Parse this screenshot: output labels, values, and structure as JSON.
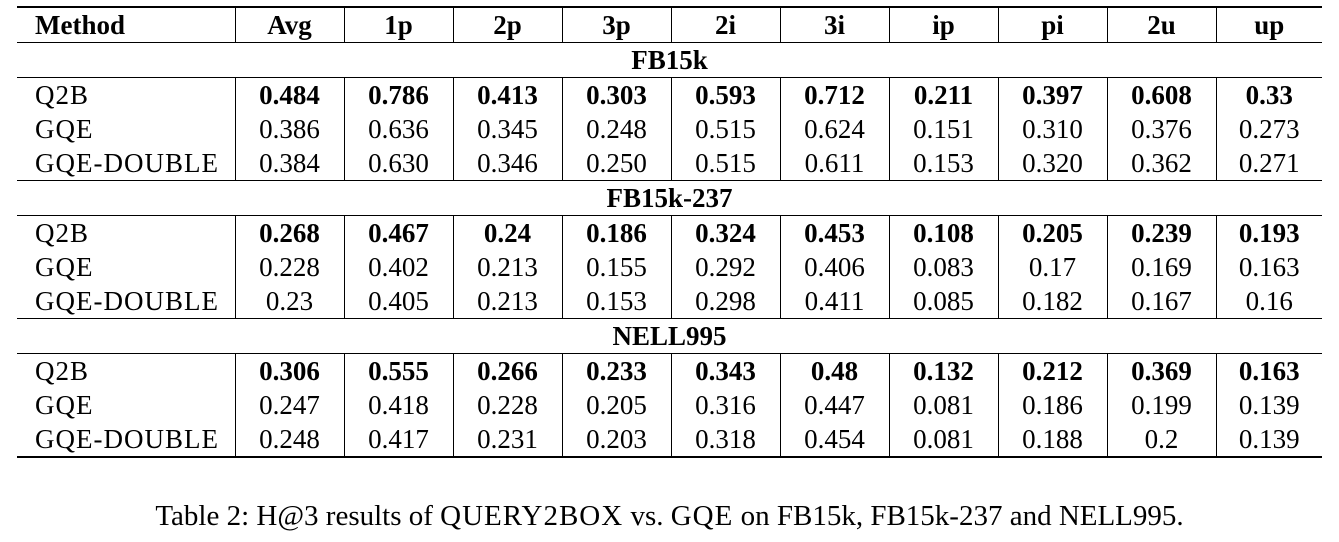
{
  "table": {
    "columns": [
      "Method",
      "Avg",
      "1p",
      "2p",
      "3p",
      "2i",
      "3i",
      "ip",
      "pi",
      "2u",
      "up"
    ],
    "sections": [
      {
        "title": "FB15k",
        "rows": [
          {
            "method": "Q2B",
            "values": [
              "0.484",
              "0.786",
              "0.413",
              "0.303",
              "0.593",
              "0.712",
              "0.211",
              "0.397",
              "0.608",
              "0.33"
            ]
          },
          {
            "method": "GQE",
            "values": [
              "0.386",
              "0.636",
              "0.345",
              "0.248",
              "0.515",
              "0.624",
              "0.151",
              "0.310",
              "0.376",
              "0.273"
            ]
          },
          {
            "method": "GQE-DOUBLE",
            "values": [
              "0.384",
              "0.630",
              "0.346",
              "0.250",
              "0.515",
              "0.611",
              "0.153",
              "0.320",
              "0.362",
              "0.271"
            ]
          }
        ]
      },
      {
        "title": "FB15k-237",
        "rows": [
          {
            "method": "Q2B",
            "values": [
              "0.268",
              "0.467",
              "0.24",
              "0.186",
              "0.324",
              "0.453",
              "0.108",
              "0.205",
              "0.239",
              "0.193"
            ]
          },
          {
            "method": "GQE",
            "values": [
              "0.228",
              "0.402",
              "0.213",
              "0.155",
              "0.292",
              "0.406",
              "0.083",
              "0.17",
              "0.169",
              "0.163"
            ]
          },
          {
            "method": "GQE-DOUBLE",
            "values": [
              "0.23",
              "0.405",
              "0.213",
              "0.153",
              "0.298",
              "0.411",
              "0.085",
              "0.182",
              "0.167",
              "0.16"
            ]
          }
        ]
      },
      {
        "title": "NELL995",
        "rows": [
          {
            "method": "Q2B",
            "values": [
              "0.306",
              "0.555",
              "0.266",
              "0.233",
              "0.343",
              "0.48",
              "0.132",
              "0.212",
              "0.369",
              "0.163"
            ]
          },
          {
            "method": "GQE",
            "values": [
              "0.247",
              "0.418",
              "0.228",
              "0.205",
              "0.316",
              "0.447",
              "0.081",
              "0.186",
              "0.199",
              "0.139"
            ]
          },
          {
            "method": "GQE-DOUBLE",
            "values": [
              "0.248",
              "0.417",
              "0.231",
              "0.203",
              "0.318",
              "0.454",
              "0.081",
              "0.188",
              "0.2",
              "0.139"
            ]
          }
        ]
      }
    ]
  },
  "caption": {
    "prefix": "Table 2: H@3 results of ",
    "model_a": "QUERY2BOX",
    "middle": " vs. ",
    "model_b": "GQE",
    "suffix": " on FB15k, FB15k-237 and NELL995."
  }
}
